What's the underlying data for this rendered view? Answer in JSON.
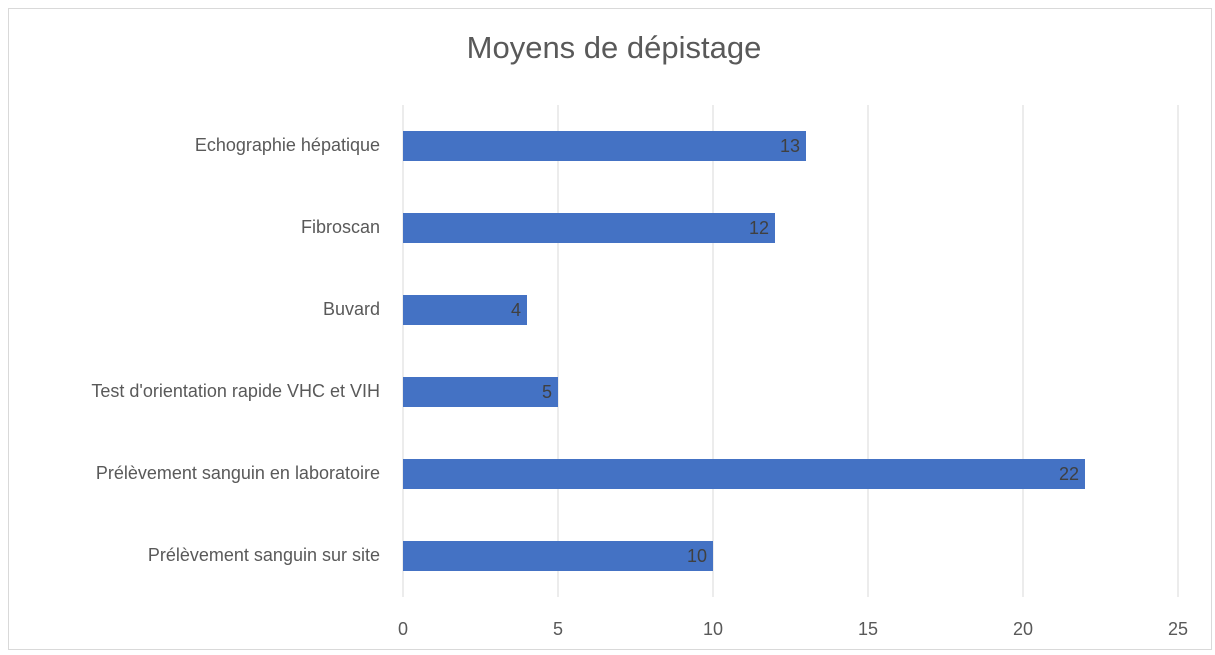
{
  "chart_data": {
    "type": "bar",
    "orientation": "horizontal",
    "title": "Moyens de dépistage",
    "categories": [
      "Echographie hépatique",
      "Fibroscan",
      "Buvard",
      "Test d'orientation rapide VHC et VIH",
      "Prélèvement sanguin en laboratoire",
      "Prélèvement sanguin sur site"
    ],
    "values": [
      13,
      12,
      4,
      5,
      22,
      10
    ],
    "color": "#4472c4",
    "xlim": [
      0,
      25
    ],
    "xticks": [
      0,
      5,
      10,
      15,
      20,
      25
    ],
    "grid": true,
    "data_labels": true
  }
}
